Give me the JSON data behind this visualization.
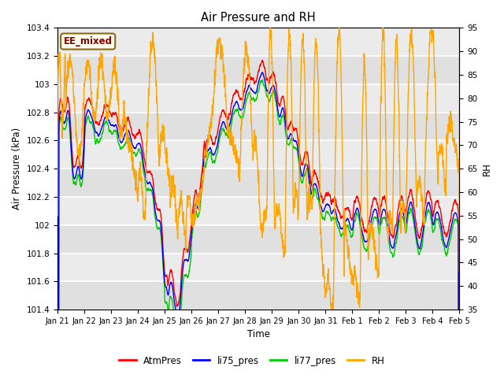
{
  "title": "Air Pressure and RH",
  "xlabel": "Time",
  "ylabel_left": "Air Pressure (kPa)",
  "ylabel_right": "RH",
  "ylim_left": [
    101.4,
    103.4
  ],
  "ylim_right": [
    35,
    95
  ],
  "yticks_left": [
    101.4,
    101.6,
    101.8,
    102.0,
    102.2,
    102.4,
    102.6,
    102.8,
    103.0,
    103.2,
    103.4
  ],
  "yticks_right": [
    35,
    40,
    45,
    50,
    55,
    60,
    65,
    70,
    75,
    80,
    85,
    90,
    95
  ],
  "xtick_labels": [
    "Jan 21",
    "Jan 22",
    "Jan 23",
    "Jan 24",
    "Jan 25",
    "Jan 26",
    "Jan 27",
    "Jan 28",
    "Jan 29",
    "Jan 30",
    "Jan 31",
    "Feb 1",
    "Feb 2",
    "Feb 3",
    "Feb 4",
    "Feb 5"
  ],
  "annotation_text": "EE_mixed",
  "annotation_color": "#8B0000",
  "annotation_bg": "#FFFFF0",
  "annotation_border": "#8B6914",
  "colors": {
    "AtmPres": "#FF0000",
    "li75_pres": "#0000FF",
    "li77_pres": "#00CC00",
    "RH": "#FFA500"
  },
  "lw": 1.0,
  "plot_bg": "#EBEBEB",
  "grid_color": "#FFFFFF",
  "legend_items": [
    "AtmPres",
    "li75_pres",
    "li77_pres",
    "RH"
  ]
}
